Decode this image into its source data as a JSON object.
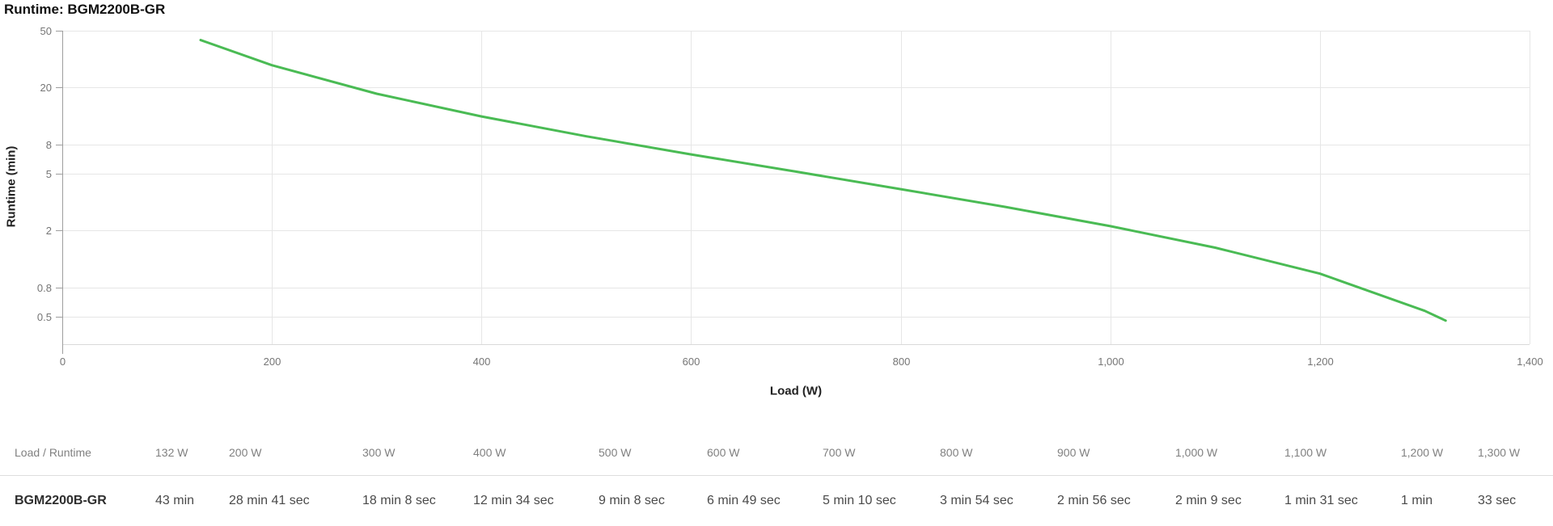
{
  "page": {
    "title": "Runtime: BGM2200B-GR"
  },
  "chart_data": {
    "type": "line",
    "title": "Runtime: BGM2200B-GR",
    "xlabel": "Load (W)",
    "ylabel": "Runtime (min)",
    "grid": true,
    "legend_position": "none",
    "x_axis": {
      "min": 0,
      "max": 1400,
      "ticks": [
        0,
        200,
        400,
        600,
        800,
        1000,
        1200,
        1400
      ],
      "tick_labels": [
        "0",
        "200",
        "400",
        "600",
        "800",
        "1,000",
        "1,200",
        "1,400"
      ]
    },
    "y_axis": {
      "scale": "log",
      "top_value": 50,
      "ticks": [
        50,
        20,
        8,
        5,
        2,
        0.8,
        0.5
      ],
      "tick_labels": [
        "50",
        "20",
        "8",
        "5",
        "2",
        "0.8",
        "0.5"
      ]
    },
    "series": [
      {
        "name": "BGM2200B-GR",
        "color": "#4abb54",
        "x": [
          132,
          200,
          300,
          400,
          500,
          600,
          700,
          800,
          900,
          1000,
          1100,
          1200,
          1300,
          1320
        ],
        "y_min": [
          43,
          28.68,
          18.13,
          12.57,
          9.13,
          6.82,
          5.17,
          3.9,
          2.93,
          2.15,
          1.52,
          1.0,
          0.55,
          0.47
        ]
      }
    ]
  },
  "table": {
    "corner_label": "Load / Runtime",
    "load_headers": [
      "132 W",
      "200 W",
      "300 W",
      "400 W",
      "500 W",
      "600 W",
      "700 W",
      "800 W",
      "900 W",
      "1,000 W",
      "1,100 W",
      "1,200 W",
      "1,300 W"
    ],
    "row": {
      "model": "BGM2200B-GR",
      "runtimes": [
        "43 min",
        "28 min 41 sec",
        "18 min 8 sec",
        "12 min 34 sec",
        "9 min 8 sec",
        "6 min 49 sec",
        "5 min 10 sec",
        "3 min 54 sec",
        "2 min 56 sec",
        "2 min 9 sec",
        "1 min 31 sec",
        "1 min",
        "33 sec"
      ]
    }
  },
  "colors": {
    "series_green": "#4abb54",
    "gridline": "#e6e6e6",
    "axis_line": "#9e9e9e",
    "bottom_axis": "#d9d9d9",
    "tick_label": "#757575",
    "divider": "#dedede"
  }
}
